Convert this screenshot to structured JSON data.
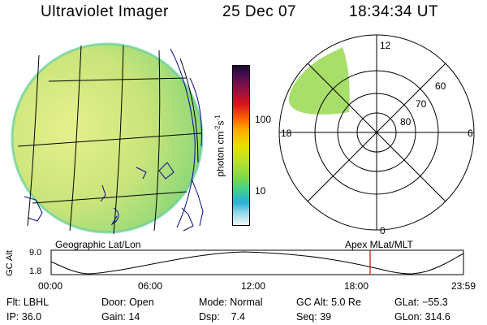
{
  "header": {
    "instrument": "Ultraviolet Imager",
    "date": "25 Dec 07",
    "time": "18:34:34 UT"
  },
  "colorbar": {
    "unit_prefix": "photon cm",
    "unit_exp1": "-2",
    "unit_mid": "s",
    "unit_exp2": "-1",
    "tick_100": "100",
    "tick_10": "10"
  },
  "polar_plot": {
    "mlt_labels": {
      "top": "12",
      "left": "18",
      "right": "6",
      "bottom": "0"
    },
    "lat_labels": [
      "60",
      "70",
      "80"
    ]
  },
  "projection_labels": {
    "left": "Geographic Lat/Lon",
    "right": "Apex MLat/MLT"
  },
  "orbit_plot": {
    "ylabel": "GC Alt",
    "ytick_top": "9.0",
    "ytick_bottom": "1.8",
    "xticks": [
      "00:00",
      "06:00",
      "12:00",
      "18:00",
      "23:59"
    ],
    "current_time_marker_color": "#e00000"
  },
  "status": {
    "row1": [
      {
        "label": "Flt:",
        "value": "LBHL"
      },
      {
        "label": "Door:",
        "value": "Open"
      },
      {
        "label": "Mode:",
        "value": "Normal"
      },
      {
        "label": "GC Alt:",
        "value": "5.0 Re"
      },
      {
        "label": "GLat:",
        "value": "−55.3"
      }
    ],
    "row2": [
      {
        "label": "IP:",
        "value": "36.0"
      },
      {
        "label": "Gain:",
        "value": "14"
      },
      {
        "label": "Dsp:",
        "value": "7.4"
      },
      {
        "label": "Seq:",
        "value": "39"
      },
      {
        "label": "GLon:",
        "value": "314.6"
      }
    ]
  },
  "colors": {
    "image_fill": "#b8e27a",
    "polar_fill": "#a8de6a",
    "coast": "#0a0a8a",
    "grid": "#000000"
  }
}
